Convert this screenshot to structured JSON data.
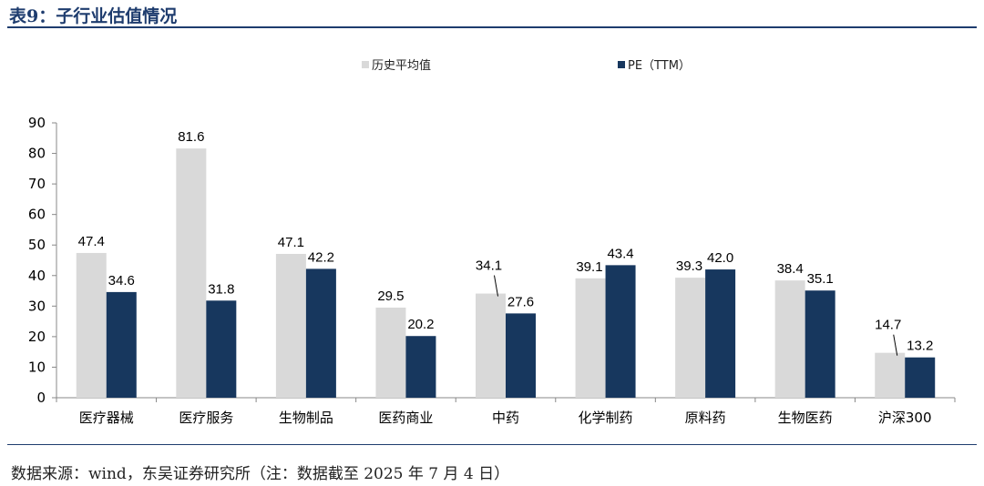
{
  "header": {
    "title": "表9：子行业估值情况"
  },
  "footer": {
    "source": "数据来源：wind，东吴证券研究所（注：数据截至 2025 年 7 月 4 日）"
  },
  "colors": {
    "series1": "#d9d9d9",
    "series2": "#17375e",
    "accent": "#1e3c6e"
  },
  "chart_data": {
    "type": "bar",
    "categories": [
      "医疗器械",
      "医疗服务",
      "生物制品",
      "医药商业",
      "中药",
      "化学制药",
      "原料药",
      "生物医药",
      "沪深300"
    ],
    "series": [
      {
        "name": "历史平均值",
        "values": [
          47.4,
          81.6,
          47.1,
          29.5,
          34.1,
          39.1,
          39.3,
          38.4,
          14.7
        ]
      },
      {
        "name": "PE（TTM）",
        "values": [
          34.6,
          31.8,
          42.2,
          20.2,
          27.6,
          43.4,
          42.0,
          35.1,
          13.2
        ]
      }
    ],
    "ylim": [
      0,
      90
    ],
    "yticks": [
      0,
      10,
      20,
      30,
      40,
      50,
      60,
      70,
      80,
      90
    ],
    "legend": "top-center",
    "grid": false
  }
}
